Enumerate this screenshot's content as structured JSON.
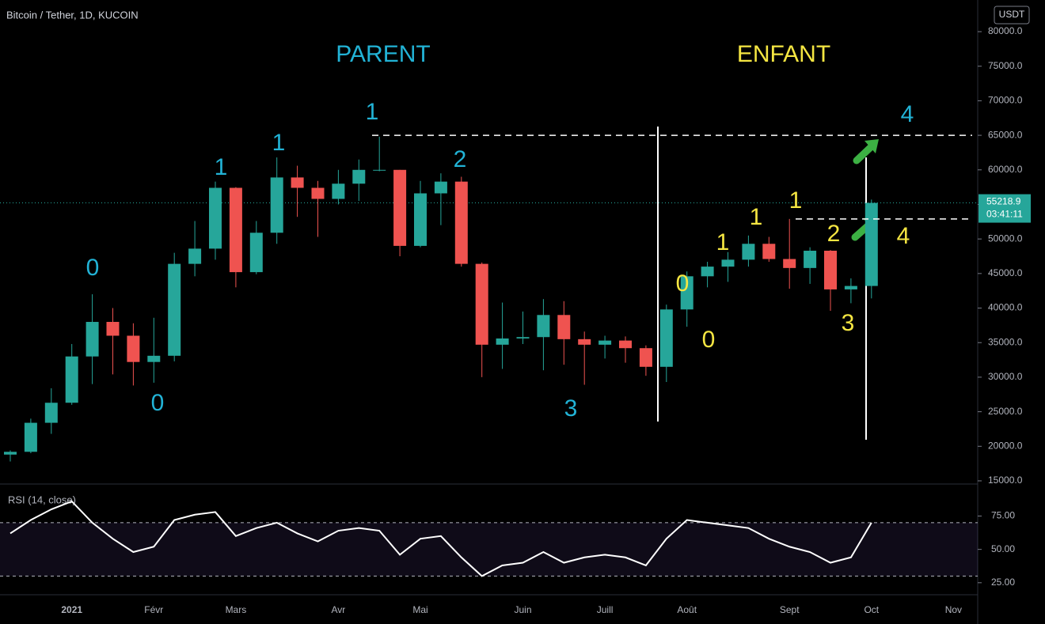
{
  "chart_data": [
    {
      "type": "candlestick",
      "title": "Bitcoin / Tether, 1D, KUCOIN",
      "axis_unit": "USDT",
      "categories": [
        null,
        null,
        null,
        "2021",
        null,
        null,
        null,
        "Févr",
        null,
        null,
        null,
        "Mars",
        null,
        null,
        null,
        null,
        "Avr",
        null,
        null,
        null,
        "Mai",
        null,
        null,
        null,
        null,
        "Juin",
        null,
        null,
        null,
        "Juill",
        null,
        null,
        null,
        "Août",
        null,
        null,
        null,
        null,
        "Sept",
        null,
        null,
        null,
        "Oct",
        null,
        null,
        null,
        "Nov"
      ],
      "open": [
        18800,
        19200,
        23400,
        26300,
        33000,
        38000,
        36000,
        32200,
        33100,
        46400,
        48600,
        57400,
        45200,
        50900,
        58900,
        57400,
        55800,
        58000,
        60000,
        60000,
        49000,
        56600,
        58300,
        46400,
        34700,
        35600,
        35800,
        39000,
        35500,
        34700,
        35300,
        34200,
        31500,
        39800,
        44600,
        46000,
        47000,
        49300,
        47100,
        45800,
        48300,
        42700,
        43200,
        null,
        null,
        null,
        null
      ],
      "high": [
        19400,
        24000,
        28400,
        34800,
        42000,
        40000,
        37800,
        38600,
        48000,
        52600,
        58300,
        57500,
        52600,
        61800,
        60600,
        58400,
        60000,
        61500,
        64800,
        60000,
        58400,
        59500,
        59000,
        46600,
        40800,
        39500,
        41300,
        41000,
        36600,
        36000,
        35900,
        34600,
        40500,
        45300,
        46700,
        48100,
        50500,
        50300,
        52900,
        48800,
        48400,
        44300,
        55700,
        null,
        null,
        null,
        null
      ],
      "low": [
        17800,
        19000,
        21800,
        26000,
        29000,
        30400,
        28800,
        29200,
        32300,
        44600,
        47000,
        43000,
        44900,
        49300,
        53200,
        50300,
        55000,
        55500,
        59800,
        47500,
        48800,
        52000,
        46000,
        30000,
        31200,
        34800,
        31000,
        31800,
        28900,
        32700,
        32100,
        30200,
        29300,
        37300,
        43000,
        43800,
        46000,
        46700,
        42800,
        43500,
        39600,
        40700,
        41400,
        null,
        null,
        null,
        null
      ],
      "close": [
        19200,
        23400,
        26300,
        33000,
        38000,
        36000,
        32200,
        33100,
        46400,
        48600,
        57400,
        45200,
        50900,
        58900,
        57400,
        55800,
        58000,
        60000,
        60000,
        49000,
        56600,
        58300,
        46400,
        34700,
        35600,
        35800,
        39000,
        35500,
        34700,
        35300,
        34200,
        31500,
        39800,
        44600,
        46000,
        47000,
        49300,
        47100,
        45800,
        48300,
        42700,
        43200,
        55218.9,
        null,
        null,
        null,
        null
      ],
      "up_color": "#26a69a",
      "down_color": "#ef5350",
      "ylim": [
        14540,
        84580
      ],
      "yticks": [
        {
          "value": 15000,
          "label": "15000.0"
        },
        {
          "value": 20000,
          "label": "20000.0"
        },
        {
          "value": 25000,
          "label": "25000.0"
        },
        {
          "value": 30000,
          "label": "30000.0"
        },
        {
          "value": 35000,
          "label": "35000.0"
        },
        {
          "value": 40000,
          "label": "40000.0"
        },
        {
          "value": 45000,
          "label": "45000.0"
        },
        {
          "value": 50000,
          "label": "50000.0"
        },
        {
          "value": 55000,
          "label": "55000.0"
        },
        {
          "value": 60000,
          "label": "60000.0"
        },
        {
          "value": 65000,
          "label": "65000.0"
        },
        {
          "value": 70000,
          "label": "70000.0"
        },
        {
          "value": 75000,
          "label": "75000.0"
        },
        {
          "value": 80000,
          "label": "80000.0"
        }
      ],
      "levels": [
        65000,
        52900
      ],
      "last_price": 55218.9,
      "countdown": "03:41:11",
      "annotations": [
        {
          "text": "PARENT",
          "color": "#22b3d6"
        },
        {
          "text": "ENFANT",
          "color": "#f5e642"
        },
        {
          "text": "0",
          "color": "#22b3d6"
        },
        {
          "text": "0",
          "color": "#22b3d6"
        },
        {
          "text": "1",
          "color": "#22b3d6"
        },
        {
          "text": "1",
          "color": "#22b3d6"
        },
        {
          "text": "1",
          "color": "#22b3d6"
        },
        {
          "text": "2",
          "color": "#22b3d6"
        },
        {
          "text": "3",
          "color": "#22b3d6"
        },
        {
          "text": "4",
          "color": "#22b3d6"
        },
        {
          "text": "0",
          "color": "#f5e642"
        },
        {
          "text": "0",
          "color": "#f5e642"
        },
        {
          "text": "1",
          "color": "#f5e642"
        },
        {
          "text": "1",
          "color": "#f5e642"
        },
        {
          "text": "1",
          "color": "#f5e642"
        },
        {
          "text": "2",
          "color": "#f5e642"
        },
        {
          "text": "3",
          "color": "#f5e642"
        },
        {
          "text": "4",
          "color": "#f5e642"
        }
      ]
    },
    {
      "type": "line",
      "title": "RSI (14, close)",
      "color": "#ffffff",
      "values": [
        62,
        72,
        80,
        86,
        70,
        58,
        48,
        52,
        72,
        76,
        78,
        60,
        66,
        70,
        62,
        56,
        64,
        66,
        64,
        46,
        58,
        60,
        44,
        30,
        38,
        40,
        48,
        40,
        44,
        46,
        44,
        38,
        58,
        72,
        70,
        68,
        66,
        58,
        52,
        48,
        40,
        44,
        70,
        null,
        null,
        null,
        null
      ],
      "ylim": [
        16,
        99
      ],
      "yticks": [
        {
          "value": 25,
          "label": "25.00"
        },
        {
          "value": 50,
          "label": "50.00"
        },
        {
          "value": 75,
          "label": "75.00"
        }
      ],
      "bands": [
        30,
        70
      ],
      "band_color": "#7e57c2"
    }
  ]
}
